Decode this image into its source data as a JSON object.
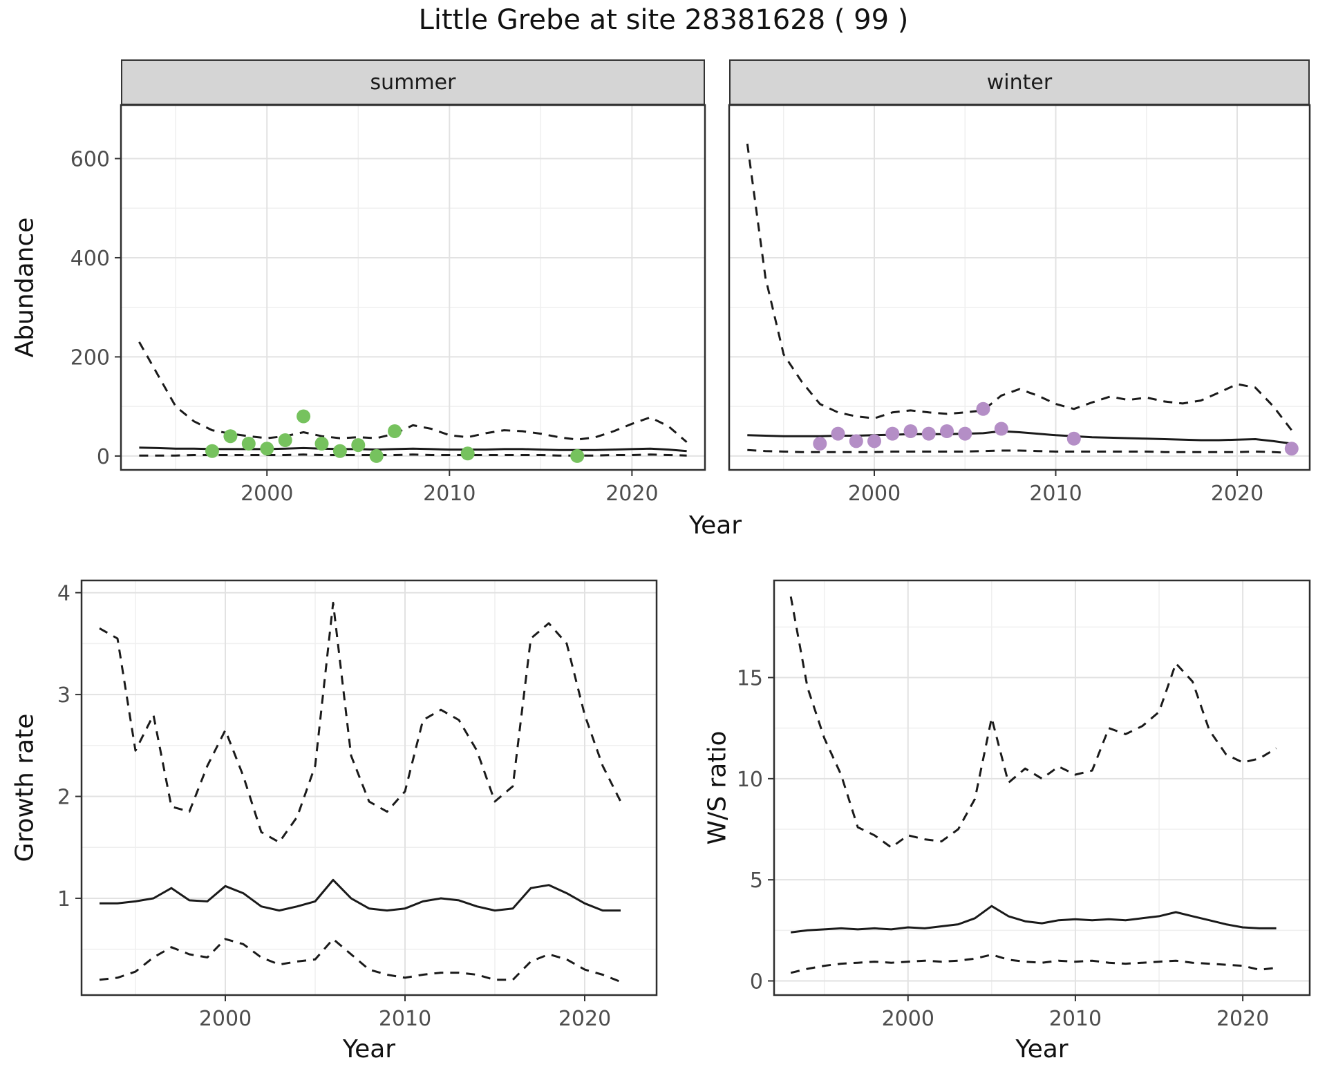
{
  "figure": {
    "title": "Little Grebe at site 28381628 ( 99 )",
    "species": "Little Grebe",
    "site_id": "28381628",
    "site_count_label": "99"
  },
  "chart_data": {
    "type": "line",
    "title": "Little Grebe at site 28381628 ( 99 )",
    "facets": [
      "summer",
      "winter"
    ],
    "colors": {
      "summer_points": "#76c25e",
      "winter_points": "#b48ec6",
      "line": "#1a1a1a",
      "strip_bg": "#d5d5d5",
      "panel_border": "#2e2e2e",
      "grid_major": "#e2e2e2",
      "grid_minor": "#efefef"
    },
    "panels": [
      {
        "id": "abundance-summer",
        "facet_label": "summer",
        "xlabel": "Year",
        "ylabel": "Abundance",
        "xlim": [
          1992,
          2024
        ],
        "ylim": [
          -28,
          708
        ],
        "xticks": [
          2000,
          2010,
          2020
        ],
        "yticks": [
          0,
          200,
          400,
          600
        ],
        "xminor": [
          1995,
          2005,
          2015
        ],
        "yminor": [
          100,
          300,
          500
        ],
        "x": [
          1993,
          1994,
          1995,
          1996,
          1997,
          1998,
          1999,
          2000,
          2001,
          2002,
          2003,
          2004,
          2005,
          2006,
          2007,
          2008,
          2009,
          2010,
          2011,
          2012,
          2013,
          2014,
          2015,
          2016,
          2017,
          2018,
          2019,
          2020,
          2021,
          2022,
          2023
        ],
        "series": [
          {
            "name": "upper-95ci",
            "style": "dashed",
            "y": [
              230,
              165,
              100,
              70,
              52,
              45,
              40,
              36,
              40,
              48,
              40,
              36,
              38,
              36,
              45,
              62,
              55,
              42,
              38,
              46,
              52,
              50,
              45,
              38,
              33,
              38,
              50,
              65,
              78,
              60,
              28
            ]
          },
          {
            "name": "model-fit",
            "style": "solid",
            "y": [
              17,
              16,
              15,
              15,
              14,
              14,
              14,
              14,
              15,
              16,
              15,
              14,
              14,
              13,
              14,
              15,
              14,
              13,
              13,
              13,
              14,
              14,
              13,
              12,
              12,
              12,
              13,
              14,
              15,
              13,
              10
            ]
          },
          {
            "name": "lower-95ci",
            "style": "dashed",
            "y": [
              1,
              1,
              1,
              2,
              2,
              2,
              2,
              2,
              2,
              3,
              2,
              2,
              2,
              2,
              2,
              3,
              2,
              2,
              2,
              2,
              2,
              2,
              2,
              1,
              1,
              1,
              2,
              2,
              3,
              2,
              1
            ]
          },
          {
            "name": "observed-counts",
            "style": "points",
            "color": "#76c25e",
            "x": [
              1997,
              1998,
              1999,
              2000,
              2001,
              2002,
              2003,
              2004,
              2005,
              2006,
              2007,
              2011,
              2017
            ],
            "y": [
              10,
              40,
              25,
              15,
              32,
              80,
              25,
              10,
              22,
              0,
              50,
              5,
              0
            ]
          }
        ]
      },
      {
        "id": "abundance-winter",
        "facet_label": "winter",
        "xlabel": "Year",
        "ylabel": "Abundance",
        "xlim": [
          1992,
          2024
        ],
        "ylim": [
          -28,
          708
        ],
        "xticks": [
          2000,
          2010,
          2020
        ],
        "yticks": [
          0,
          200,
          400,
          600
        ],
        "xminor": [
          1995,
          2005,
          2015
        ],
        "yminor": [
          100,
          300,
          500
        ],
        "x": [
          1993,
          1994,
          1995,
          1996,
          1997,
          1998,
          1999,
          2000,
          2001,
          2002,
          2003,
          2004,
          2005,
          2006,
          2007,
          2008,
          2009,
          2010,
          2011,
          2012,
          2013,
          2014,
          2015,
          2016,
          2017,
          2018,
          2019,
          2020,
          2021,
          2022,
          2023
        ],
        "series": [
          {
            "name": "upper-95ci",
            "style": "dashed",
            "y": [
              630,
              360,
              205,
              150,
              105,
              88,
              80,
              76,
              88,
              92,
              88,
              85,
              88,
              92,
              122,
              135,
              122,
              105,
              95,
              108,
              120,
              113,
              118,
              110,
              106,
              112,
              128,
              145,
              138,
              100,
              52
            ]
          },
          {
            "name": "model-fit",
            "style": "solid",
            "y": [
              42,
              41,
              40,
              40,
              40,
              41,
              41,
              42,
              43,
              44,
              44,
              44,
              45,
              46,
              50,
              48,
              45,
              42,
              40,
              38,
              37,
              36,
              35,
              34,
              33,
              32,
              32,
              33,
              34,
              30,
              25
            ]
          },
          {
            "name": "lower-95ci",
            "style": "dashed",
            "y": [
              12,
              10,
              9,
              8,
              8,
              8,
              8,
              8,
              9,
              9,
              9,
              9,
              9,
              10,
              11,
              11,
              10,
              9,
              9,
              9,
              9,
              9,
              9,
              8,
              8,
              8,
              8,
              8,
              9,
              8,
              6
            ]
          },
          {
            "name": "observed-counts",
            "style": "points",
            "color": "#b48ec6",
            "x": [
              1997,
              1998,
              1999,
              2000,
              2001,
              2002,
              2003,
              2004,
              2005,
              2006,
              2007,
              2011,
              2023
            ],
            "y": [
              25,
              45,
              30,
              30,
              45,
              50,
              45,
              50,
              45,
              95,
              55,
              35,
              15
            ]
          }
        ]
      },
      {
        "id": "growth-rate",
        "facet_label": "",
        "xlabel": "Year",
        "ylabel": "Growth rate",
        "xlim": [
          1992,
          2024
        ],
        "ylim": [
          0.05,
          4.12
        ],
        "xticks": [
          2000,
          2010,
          2020
        ],
        "yticks": [
          1,
          2,
          3,
          4
        ],
        "xminor": [
          1995,
          2005,
          2015
        ],
        "yminor": [
          0.5,
          1.5,
          2.5,
          3.5
        ],
        "x": [
          1993,
          1994,
          1995,
          1996,
          1997,
          1998,
          1999,
          2000,
          2001,
          2002,
          2003,
          2004,
          2005,
          2006,
          2007,
          2008,
          2009,
          2010,
          2011,
          2012,
          2013,
          2014,
          2015,
          2016,
          2017,
          2018,
          2019,
          2020,
          2021,
          2022
        ],
        "series": [
          {
            "name": "upper-95ci",
            "style": "dashed",
            "y": [
              3.65,
              3.55,
              2.45,
              2.8,
              1.9,
              1.85,
              2.3,
              2.65,
              2.2,
              1.65,
              1.55,
              1.8,
              2.3,
              3.9,
              2.4,
              1.95,
              1.85,
              2.05,
              2.75,
              2.85,
              2.75,
              2.45,
              1.95,
              2.1,
              3.55,
              3.7,
              3.5,
              2.8,
              2.3,
              1.95
            ]
          },
          {
            "name": "model-fit",
            "style": "solid",
            "y": [
              0.95,
              0.95,
              0.97,
              1.0,
              1.1,
              0.98,
              0.97,
              1.12,
              1.05,
              0.92,
              0.88,
              0.92,
              0.97,
              1.18,
              1.0,
              0.9,
              0.88,
              0.9,
              0.97,
              1.0,
              0.98,
              0.92,
              0.88,
              0.9,
              1.1,
              1.13,
              1.05,
              0.95,
              0.88,
              0.88
            ]
          },
          {
            "name": "lower-95ci",
            "style": "dashed",
            "y": [
              0.2,
              0.22,
              0.28,
              0.42,
              0.52,
              0.45,
              0.42,
              0.6,
              0.55,
              0.42,
              0.35,
              0.38,
              0.4,
              0.6,
              0.45,
              0.3,
              0.25,
              0.22,
              0.25,
              0.27,
              0.27,
              0.25,
              0.2,
              0.2,
              0.38,
              0.45,
              0.4,
              0.3,
              0.25,
              0.18
            ]
          }
        ]
      },
      {
        "id": "ws-ratio",
        "facet_label": "",
        "xlabel": "Year",
        "ylabel": "W/S ratio",
        "xlim": [
          1992,
          2024
        ],
        "ylim": [
          -0.7,
          19.8
        ],
        "xticks": [
          2000,
          2010,
          2020
        ],
        "yticks": [
          0,
          5,
          10,
          15
        ],
        "xminor": [
          1995,
          2005,
          2015
        ],
        "yminor": [
          2.5,
          7.5,
          12.5,
          17.5
        ],
        "x": [
          1993,
          1994,
          1995,
          1996,
          1997,
          1998,
          1999,
          2000,
          2001,
          2002,
          2003,
          2004,
          2005,
          2006,
          2007,
          2008,
          2009,
          2010,
          2011,
          2012,
          2013,
          2014,
          2015,
          2016,
          2017,
          2018,
          2019,
          2020,
          2021,
          2022
        ],
        "series": [
          {
            "name": "upper-95ci",
            "style": "dashed",
            "y": [
              19.0,
              14.5,
              12.0,
              10.2,
              7.6,
              7.2,
              6.6,
              7.2,
              7.0,
              6.9,
              7.5,
              9.0,
              13.0,
              9.8,
              10.5,
              10.0,
              10.6,
              10.2,
              10.4,
              12.5,
              12.2,
              12.6,
              13.3,
              15.7,
              14.8,
              12.4,
              11.2,
              10.8,
              11.0,
              11.5
            ]
          },
          {
            "name": "model-fit",
            "style": "solid",
            "y": [
              2.4,
              2.5,
              2.55,
              2.6,
              2.55,
              2.6,
              2.55,
              2.65,
              2.6,
              2.7,
              2.8,
              3.1,
              3.7,
              3.2,
              2.95,
              2.85,
              3.0,
              3.05,
              3.0,
              3.05,
              3.0,
              3.1,
              3.2,
              3.4,
              3.2,
              3.0,
              2.8,
              2.65,
              2.6,
              2.6
            ]
          },
          {
            "name": "lower-95ci",
            "style": "dashed",
            "y": [
              0.4,
              0.6,
              0.75,
              0.85,
              0.9,
              0.95,
              0.9,
              0.95,
              1.0,
              0.95,
              1.0,
              1.1,
              1.3,
              1.05,
              0.95,
              0.9,
              1.0,
              0.95,
              1.0,
              0.9,
              0.85,
              0.9,
              0.95,
              1.0,
              0.9,
              0.85,
              0.8,
              0.75,
              0.55,
              0.65
            ]
          }
        ]
      }
    ]
  }
}
